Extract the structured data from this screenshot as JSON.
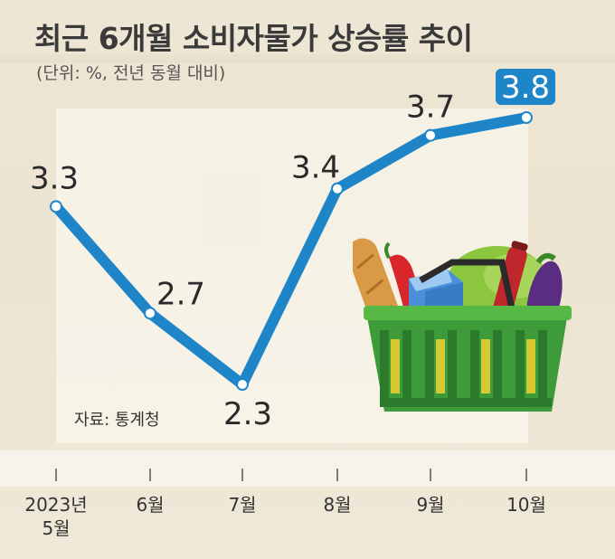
{
  "header": {
    "title": "최근 6개월 소비자물가 상승률 추이",
    "subtitle": "(단위: %, 전년 동월 대비)"
  },
  "source": "자료: 통계청",
  "colors": {
    "line": "#1e86c8",
    "highlight_bg": "#1e86c8",
    "text": "#333333"
  },
  "chart_data": {
    "type": "line",
    "title": "최근 6개월 소비자물가 상승률 추이",
    "ylabel": "",
    "xlabel": "",
    "unit": "%, 전년 동월 대비",
    "categories": [
      "2023년\n5월",
      "6월",
      "7월",
      "8월",
      "9월",
      "10월"
    ],
    "category_lines": [
      [
        "2023년",
        "5월"
      ],
      [
        "6월"
      ],
      [
        "7월"
      ],
      [
        "8월"
      ],
      [
        "9월"
      ],
      [
        "10월"
      ]
    ],
    "values": [
      3.3,
      2.7,
      2.3,
      3.4,
      3.7,
      3.8
    ],
    "value_labels": [
      "3.3",
      "2.7",
      "2.3",
      "3.4",
      "3.7",
      "3.8"
    ],
    "highlighted_index": 5,
    "ylim": [
      2.3,
      3.8
    ],
    "grid": false,
    "legend": "none"
  }
}
